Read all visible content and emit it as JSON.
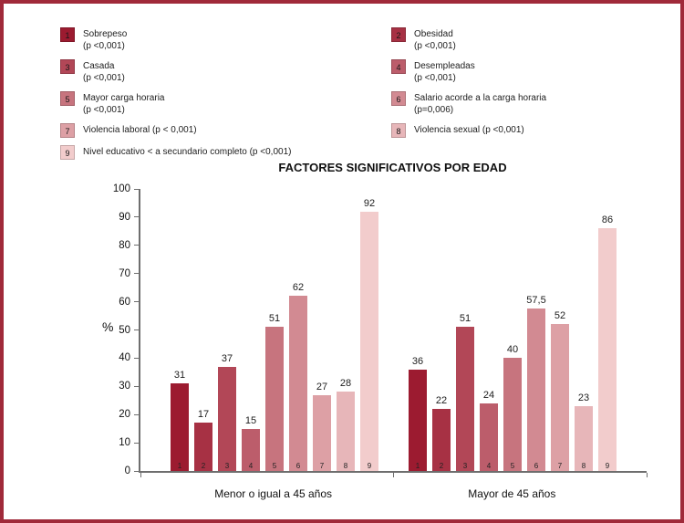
{
  "page": {
    "border_color": "#a02a3a",
    "background": "#ffffff"
  },
  "legend": {
    "items": [
      {
        "num": "1",
        "lines": [
          "Sobrepeso",
          "(p <0,001)"
        ]
      },
      {
        "num": "2",
        "lines": [
          "Obesidad",
          "(p <0,001)"
        ]
      },
      {
        "num": "3",
        "lines": [
          "Casada",
          "(p <0,001)"
        ]
      },
      {
        "num": "4",
        "lines": [
          "Desempleadas",
          "(p <0,001)"
        ]
      },
      {
        "num": "5",
        "lines": [
          "Mayor carga horaria",
          "(p <0,001)"
        ]
      },
      {
        "num": "6",
        "lines": [
          "Salario acorde a la carga horaria",
          "(p=0,006)"
        ]
      },
      {
        "num": "7",
        "lines": [
          "Violencia laboral  (p < 0,001)"
        ]
      },
      {
        "num": "8",
        "lines": [
          "Violencia sexual (p <0,001)"
        ]
      },
      {
        "num": "9",
        "lines": [
          "Nivel educativo < a secundario completo (p <0,001)"
        ]
      }
    ]
  },
  "chart_data": {
    "type": "bar",
    "title": "FACTORES SIGNIFICATIVOS POR EDAD",
    "ylabel": "%",
    "ylim": [
      0,
      100
    ],
    "yticks": [
      0,
      10,
      20,
      30,
      40,
      50,
      60,
      70,
      80,
      90,
      100
    ],
    "grid": false,
    "legend_position": "top",
    "bar_numbers": [
      "1",
      "2",
      "3",
      "4",
      "5",
      "6",
      "7",
      "8",
      "9"
    ],
    "colors": [
      "#9C1B30",
      "#A73144",
      "#B24757",
      "#BC5D6B",
      "#C7747E",
      "#D28A92",
      "#DDA0A5",
      "#E7B6B9",
      "#F2CCCC"
    ],
    "groups": [
      {
        "label": "Menor o igual a 45 años",
        "values": [
          31,
          17,
          37,
          15,
          51,
          62,
          27,
          28,
          92
        ],
        "labels": [
          "31",
          "17",
          "37",
          "15",
          "51",
          "62",
          "27",
          "28",
          "92"
        ]
      },
      {
        "label": "Mayor de 45 años",
        "values": [
          36,
          22,
          51,
          24,
          40,
          57.5,
          52,
          23,
          86
        ],
        "labels": [
          "36",
          "22",
          "51",
          "24",
          "40",
          "57,5",
          "52",
          "23",
          "86"
        ]
      }
    ]
  }
}
